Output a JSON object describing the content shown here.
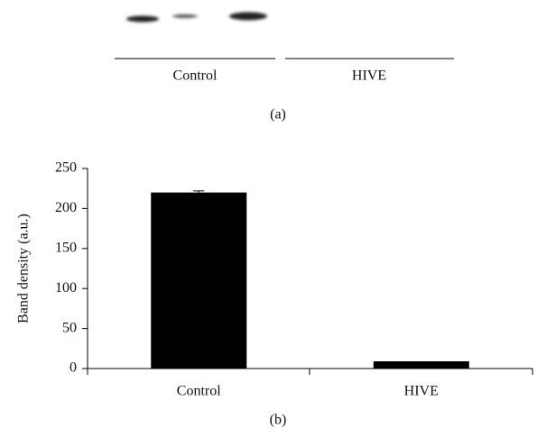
{
  "blot": {
    "groups": [
      "Control",
      "HIVE"
    ],
    "caption": "(a)"
  },
  "chart_data": {
    "type": "bar",
    "caption": "(b)",
    "y_label": "Band density (a.u.)",
    "categories": [
      "Control",
      "HIVE"
    ],
    "values": [
      220,
      9
    ],
    "errors": [
      2,
      null
    ],
    "color": "#000000",
    "ylim": [
      0,
      250
    ],
    "yticks": [
      0,
      50,
      100,
      150,
      200,
      250
    ],
    "grid": false
  }
}
